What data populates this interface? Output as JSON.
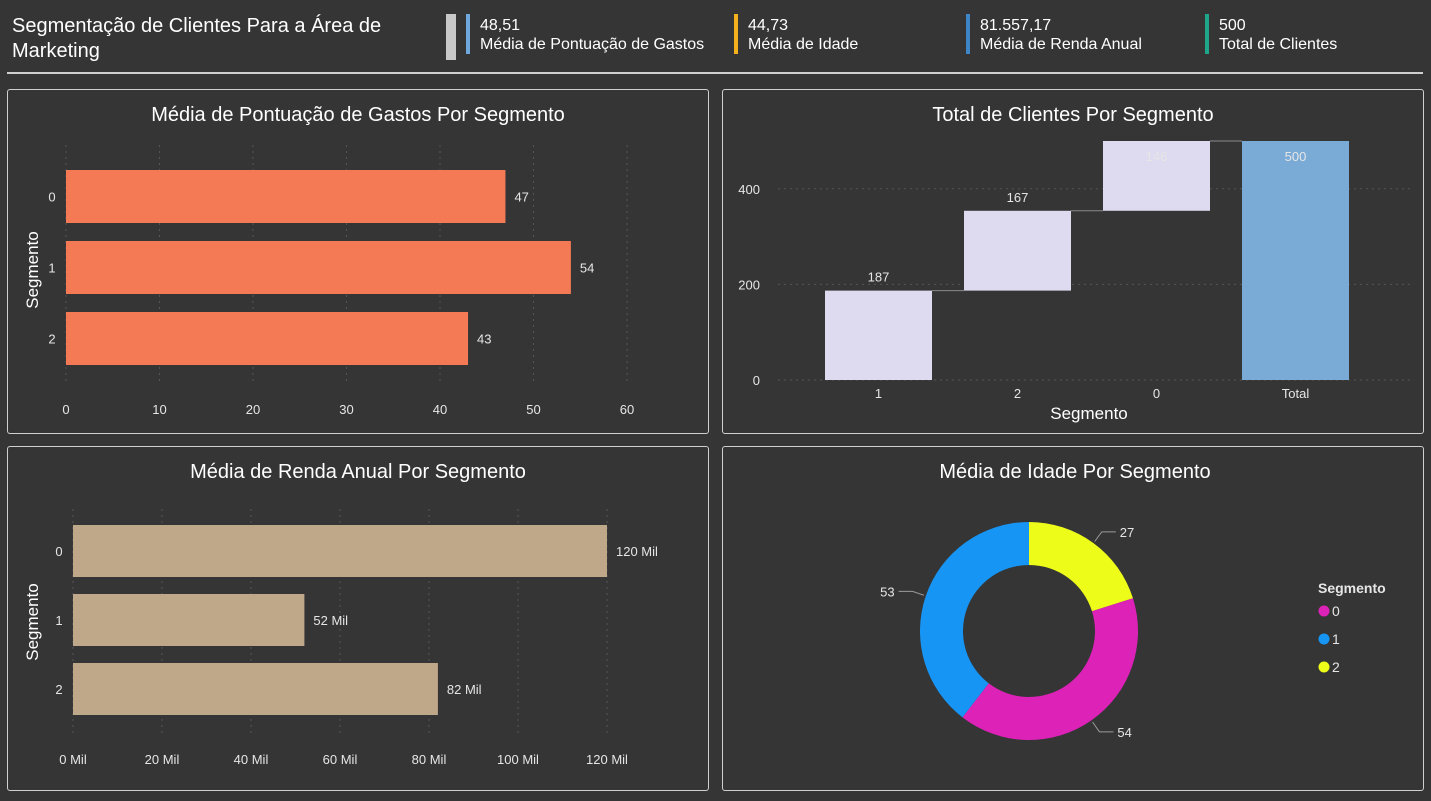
{
  "header": {
    "title_line1": "Segmentação de Clientes Para a Área de",
    "title_line2": "Marketing",
    "kpis": [
      {
        "value": "48,51",
        "label": "Média de Pontuação de Gastos",
        "color": "#6fa8dc"
      },
      {
        "value": "44,73",
        "label": "Média de Idade",
        "color": "#f6b01e"
      },
      {
        "value": "81.557,17",
        "label": "Média de Renda Anual",
        "color": "#3d85c6"
      },
      {
        "value": "500",
        "label": "Total de Clientes",
        "color": "#1fa58a"
      }
    ]
  },
  "chart_data": [
    {
      "type": "bar",
      "orientation": "horizontal",
      "title": "Média de Pontuação de Gastos Por Segmento",
      "ylabel": "Segmento",
      "xlabel": "",
      "categories": [
        "0",
        "1",
        "2"
      ],
      "values": [
        47,
        54,
        43
      ],
      "data_labels": [
        "47",
        "54",
        "43"
      ],
      "xlim": [
        0,
        60
      ],
      "xticks": [
        0,
        10,
        20,
        30,
        40,
        50,
        60
      ],
      "xtick_labels": [
        "0",
        "10",
        "20",
        "30",
        "40",
        "50",
        "60"
      ],
      "color": "#f47a55",
      "grid": true
    },
    {
      "type": "waterfall",
      "title": "Total de Clientes Por Segmento",
      "xlabel": "Segmento",
      "ylabel": "",
      "categories": [
        "1",
        "2",
        "0",
        "Total"
      ],
      "values": [
        187,
        167,
        146,
        500
      ],
      "data_labels": [
        "187",
        "167",
        "146",
        "500"
      ],
      "ylim": [
        0,
        500
      ],
      "yticks": [
        0,
        200,
        400
      ],
      "ytick_labels": [
        "0",
        "200",
        "400"
      ],
      "step_color": "#dedaf0",
      "total_color": "#7aabd6",
      "grid": true
    },
    {
      "type": "bar",
      "orientation": "horizontal",
      "title": "Média de Renda Anual Por Segmento",
      "ylabel": "Segmento",
      "xlabel": "",
      "categories": [
        "0",
        "1",
        "2"
      ],
      "values": [
        120000,
        52000,
        82000
      ],
      "data_labels": [
        "120 Mil",
        "52 Mil",
        "82 Mil"
      ],
      "xlim": [
        0,
        120000
      ],
      "xticks": [
        0,
        20000,
        40000,
        60000,
        80000,
        100000,
        120000
      ],
      "xtick_labels": [
        "0 Mil",
        "20 Mil",
        "40 Mil",
        "60 Mil",
        "80 Mil",
        "100 Mil",
        "120 Mil"
      ],
      "color": "#bfa78a",
      "grid": true
    },
    {
      "type": "pie",
      "donut": true,
      "title": "Média de Idade Por Segmento",
      "legend_title": "Segmento",
      "legend_position": "right",
      "slices": [
        {
          "label": "0",
          "value": 54,
          "color": "#dd22b8"
        },
        {
          "label": "1",
          "value": 53,
          "color": "#1795f5"
        },
        {
          "label": "2",
          "value": 27,
          "color": "#eefc1a"
        }
      ],
      "data_labels": [
        "54",
        "53",
        "27"
      ]
    }
  ]
}
